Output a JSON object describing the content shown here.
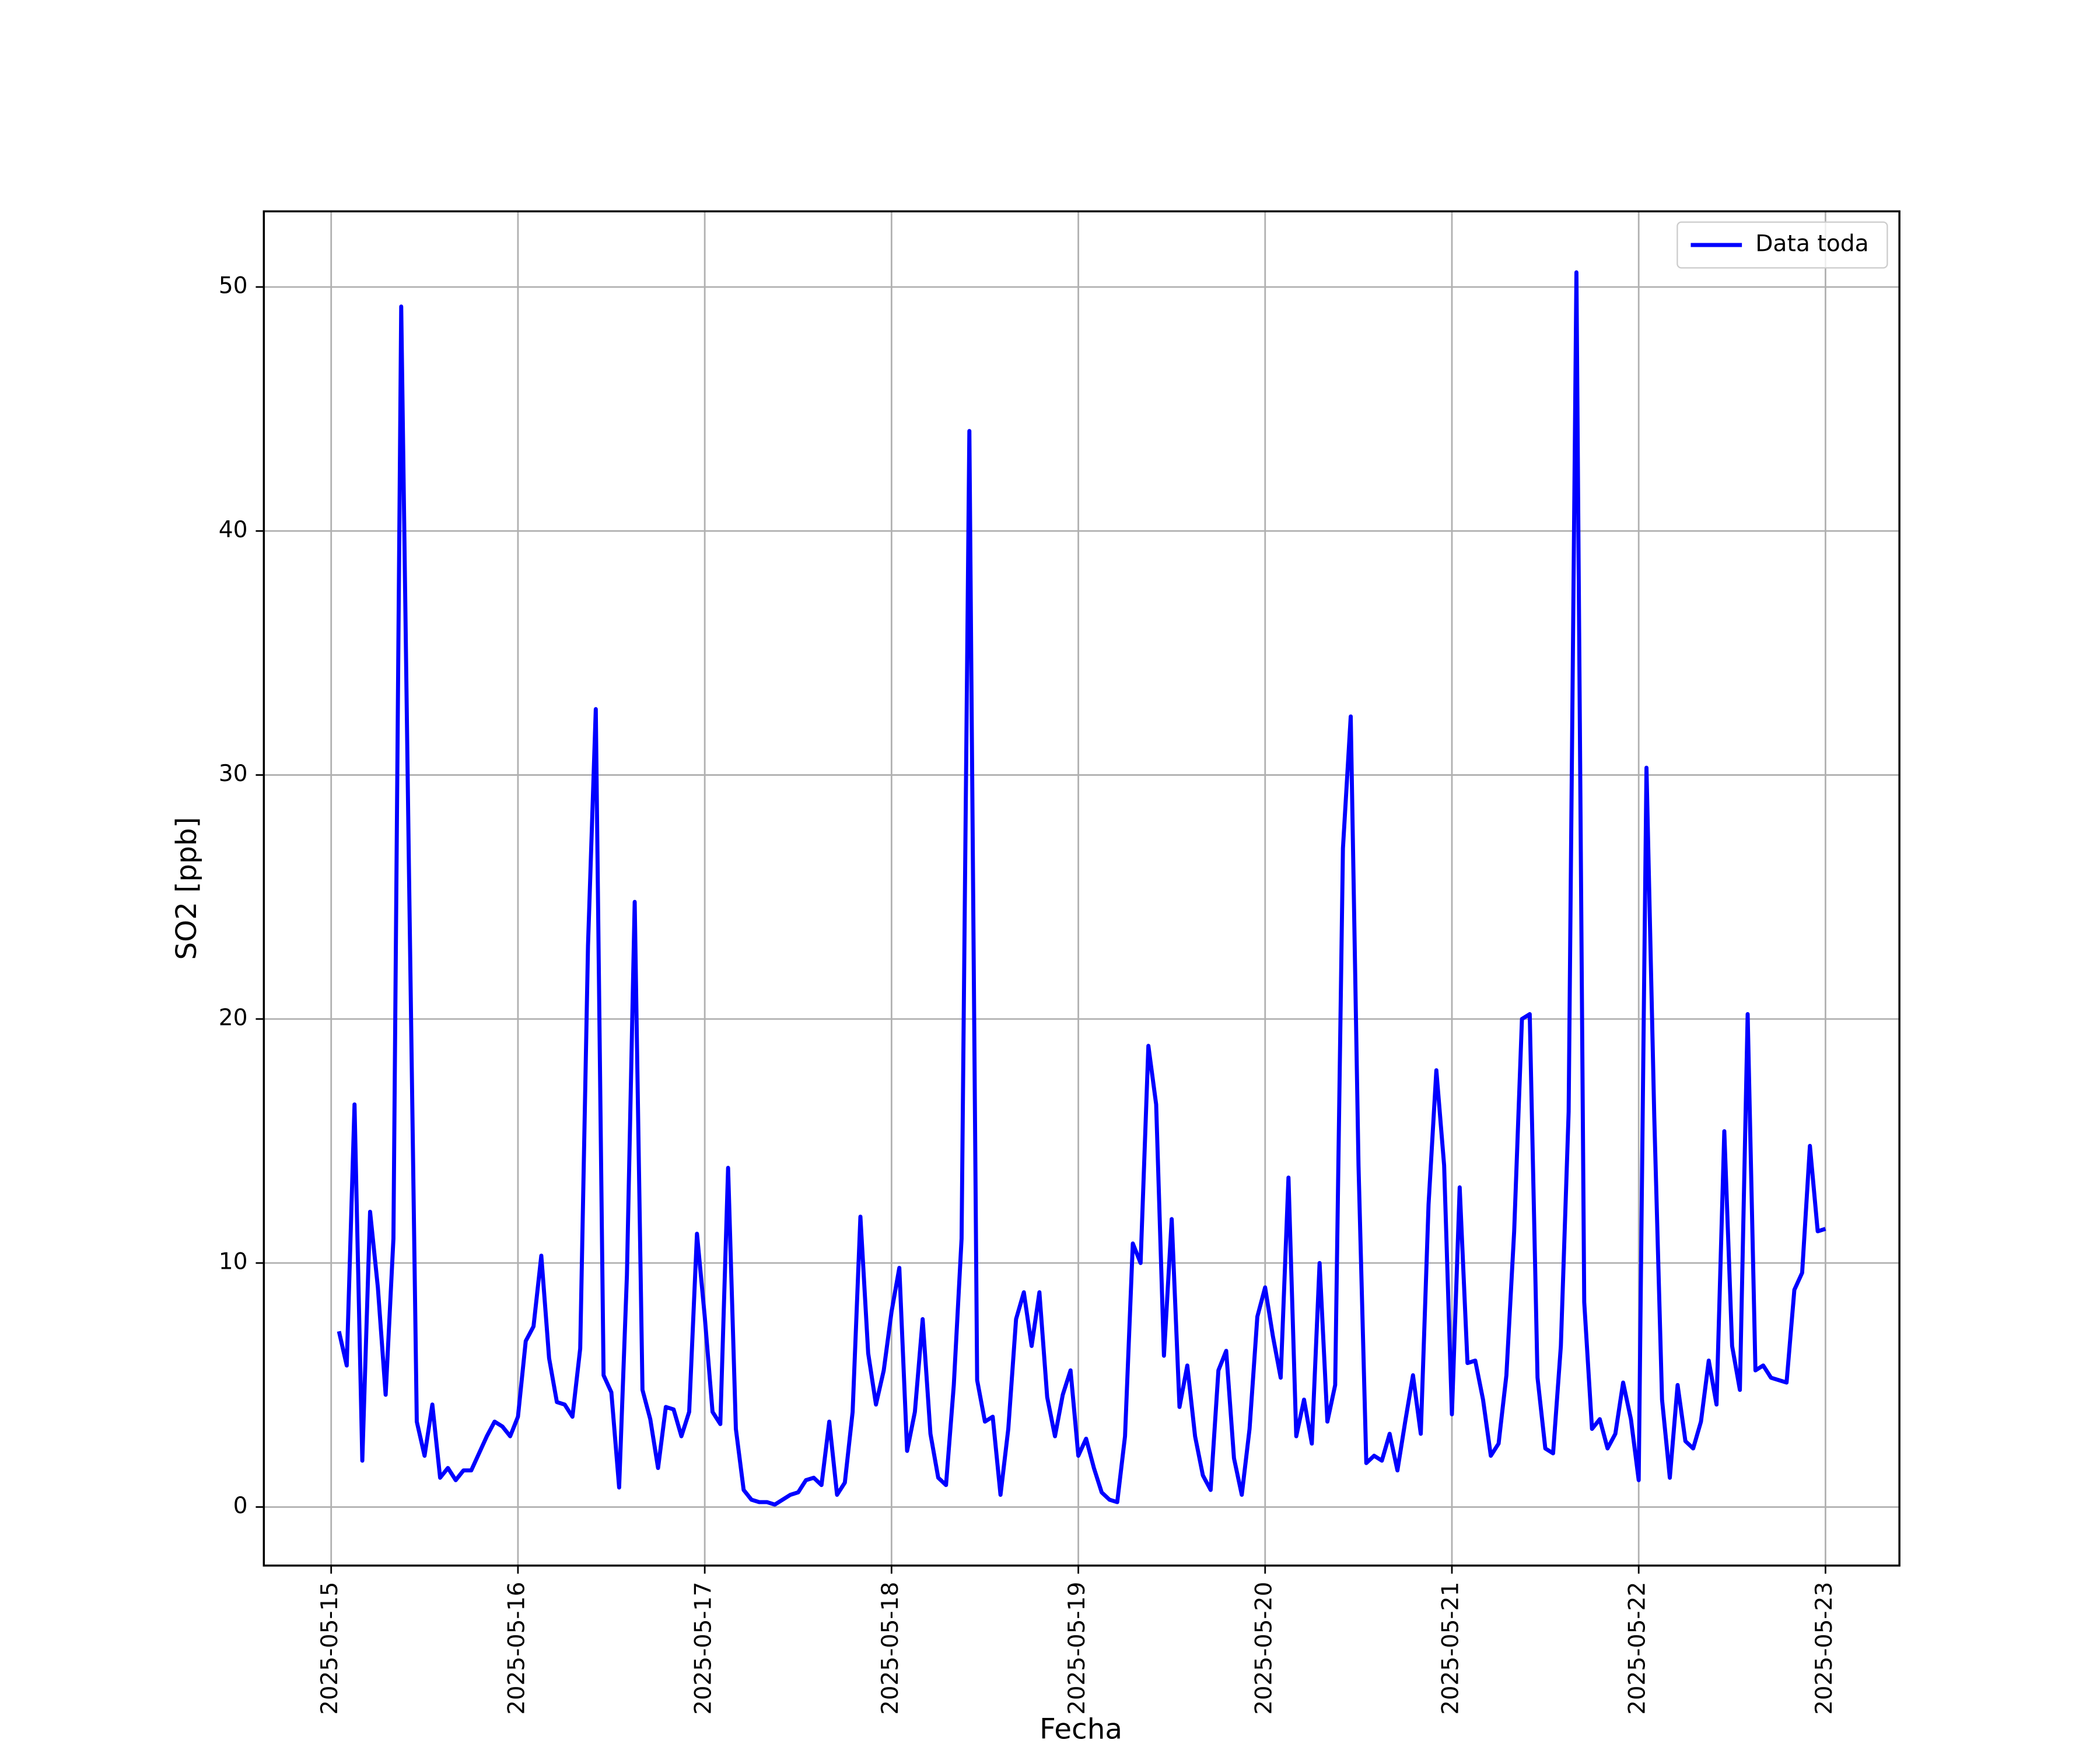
{
  "chart_data": {
    "type": "line",
    "x_label": "Fecha",
    "y_label": "SO2 [ppb]",
    "x": [
      "2025-05-15 01:00",
      "2025-05-15 02:00",
      "2025-05-15 03:00",
      "2025-05-15 04:00",
      "2025-05-15 05:00",
      "2025-05-15 06:00",
      "2025-05-15 07:00",
      "2025-05-15 08:00",
      "2025-05-15 09:00",
      "2025-05-15 10:00",
      "2025-05-15 11:00",
      "2025-05-15 12:00",
      "2025-05-15 13:00",
      "2025-05-15 14:00",
      "2025-05-15 15:00",
      "2025-05-15 16:00",
      "2025-05-15 17:00",
      "2025-05-15 18:00",
      "2025-05-15 19:00",
      "2025-05-15 20:00",
      "2025-05-15 21:00",
      "2025-05-15 22:00",
      "2025-05-15 23:00",
      "2025-05-16 00:00",
      "2025-05-16 01:00",
      "2025-05-16 02:00",
      "2025-05-16 03:00",
      "2025-05-16 04:00",
      "2025-05-16 05:00",
      "2025-05-16 06:00",
      "2025-05-16 07:00",
      "2025-05-16 08:00",
      "2025-05-16 09:00",
      "2025-05-16 10:00",
      "2025-05-16 11:00",
      "2025-05-16 12:00",
      "2025-05-16 13:00",
      "2025-05-16 14:00",
      "2025-05-16 15:00",
      "2025-05-16 16:00",
      "2025-05-16 17:00",
      "2025-05-16 18:00",
      "2025-05-16 19:00",
      "2025-05-16 20:00",
      "2025-05-16 21:00",
      "2025-05-16 22:00",
      "2025-05-16 23:00",
      "2025-05-17 00:00",
      "2025-05-17 01:00",
      "2025-05-17 02:00",
      "2025-05-17 03:00",
      "2025-05-17 04:00",
      "2025-05-17 05:00",
      "2025-05-17 06:00",
      "2025-05-17 07:00",
      "2025-05-17 08:00",
      "2025-05-17 09:00",
      "2025-05-17 10:00",
      "2025-05-17 11:00",
      "2025-05-17 12:00",
      "2025-05-17 13:00",
      "2025-05-17 14:00",
      "2025-05-17 15:00",
      "2025-05-17 16:00",
      "2025-05-17 17:00",
      "2025-05-17 18:00",
      "2025-05-17 19:00",
      "2025-05-17 20:00",
      "2025-05-17 21:00",
      "2025-05-17 22:00",
      "2025-05-17 23:00",
      "2025-05-18 00:00",
      "2025-05-18 01:00",
      "2025-05-18 02:00",
      "2025-05-18 03:00",
      "2025-05-18 04:00",
      "2025-05-18 05:00",
      "2025-05-18 06:00",
      "2025-05-18 07:00",
      "2025-05-18 08:00",
      "2025-05-18 09:00",
      "2025-05-18 10:00",
      "2025-05-18 11:00",
      "2025-05-18 12:00",
      "2025-05-18 13:00",
      "2025-05-18 14:00",
      "2025-05-18 15:00",
      "2025-05-18 16:00",
      "2025-05-18 17:00",
      "2025-05-18 18:00",
      "2025-05-18 19:00",
      "2025-05-18 20:00",
      "2025-05-18 21:00",
      "2025-05-18 22:00",
      "2025-05-18 23:00",
      "2025-05-19 00:00",
      "2025-05-19 01:00",
      "2025-05-19 02:00",
      "2025-05-19 03:00",
      "2025-05-19 04:00",
      "2025-05-19 05:00",
      "2025-05-19 06:00",
      "2025-05-19 07:00",
      "2025-05-19 08:00",
      "2025-05-19 09:00",
      "2025-05-19 10:00",
      "2025-05-19 11:00",
      "2025-05-19 12:00",
      "2025-05-19 13:00",
      "2025-05-19 14:00",
      "2025-05-19 15:00",
      "2025-05-19 16:00",
      "2025-05-19 17:00",
      "2025-05-19 18:00",
      "2025-05-19 19:00",
      "2025-05-19 20:00",
      "2025-05-19 21:00",
      "2025-05-19 22:00",
      "2025-05-19 23:00",
      "2025-05-20 00:00",
      "2025-05-20 01:00",
      "2025-05-20 02:00",
      "2025-05-20 03:00",
      "2025-05-20 04:00",
      "2025-05-20 05:00",
      "2025-05-20 06:00",
      "2025-05-20 07:00",
      "2025-05-20 08:00",
      "2025-05-20 09:00",
      "2025-05-20 10:00",
      "2025-05-20 11:00",
      "2025-05-20 12:00",
      "2025-05-20 13:00",
      "2025-05-20 14:00",
      "2025-05-20 15:00",
      "2025-05-20 16:00",
      "2025-05-20 17:00",
      "2025-05-20 18:00",
      "2025-05-20 19:00",
      "2025-05-20 20:00",
      "2025-05-20 21:00",
      "2025-05-20 22:00",
      "2025-05-20 23:00",
      "2025-05-21 00:00",
      "2025-05-21 01:00",
      "2025-05-21 02:00",
      "2025-05-21 03:00",
      "2025-05-21 04:00",
      "2025-05-21 05:00",
      "2025-05-21 06:00",
      "2025-05-21 07:00",
      "2025-05-21 08:00",
      "2025-05-21 09:00",
      "2025-05-21 10:00",
      "2025-05-21 11:00",
      "2025-05-21 12:00",
      "2025-05-21 13:00",
      "2025-05-21 14:00",
      "2025-05-21 15:00",
      "2025-05-21 16:00",
      "2025-05-21 17:00",
      "2025-05-21 18:00",
      "2025-05-21 19:00",
      "2025-05-21 20:00",
      "2025-05-21 21:00",
      "2025-05-21 22:00",
      "2025-05-21 23:00",
      "2025-05-22 00:00",
      "2025-05-22 01:00",
      "2025-05-22 02:00",
      "2025-05-22 03:00",
      "2025-05-22 04:00",
      "2025-05-22 05:00",
      "2025-05-22 06:00",
      "2025-05-22 07:00",
      "2025-05-22 08:00",
      "2025-05-22 09:00",
      "2025-05-22 10:00",
      "2025-05-22 11:00",
      "2025-05-22 12:00",
      "2025-05-22 13:00",
      "2025-05-22 14:00",
      "2025-05-22 15:00",
      "2025-05-22 16:00",
      "2025-05-22 17:00",
      "2025-05-22 18:00",
      "2025-05-22 19:00",
      "2025-05-22 20:00",
      "2025-05-22 21:00",
      "2025-05-22 22:00",
      "2025-05-22 23:00",
      "2025-05-23 00:00"
    ],
    "series": [
      {
        "name": "Data toda",
        "color": "#0000ff",
        "values": [
          7.2,
          5.8,
          16.5,
          1.9,
          12.1,
          9,
          4.6,
          11,
          49.2,
          26,
          3.5,
          2.1,
          4.2,
          1.2,
          1.6,
          1.1,
          1.5,
          1.5,
          2.2,
          2.9,
          3.5,
          3.3,
          2.9,
          3.7,
          6.8,
          7.4,
          10.3,
          6.1,
          4.3,
          4.2,
          3.7,
          6.5,
          23,
          32.7,
          5.4,
          4.7,
          0.8,
          9.5,
          24.8,
          4.8,
          3.6,
          1.6,
          4.1,
          4.0,
          2.9,
          3.9,
          11.2,
          7.8,
          3.9,
          3.4,
          13.9,
          3.2,
          0.7,
          0.3,
          0.2,
          0.2,
          0.1,
          0.3,
          0.5,
          0.6,
          1.1,
          1.2,
          0.9,
          3.5,
          0.5,
          1.0,
          3.9,
          11.9,
          6.3,
          4.2,
          5.6,
          8.0,
          9.8,
          2.3,
          3.9,
          7.7,
          3.0,
          1.2,
          0.9,
          5.0,
          11,
          44.1,
          5.2,
          3.5,
          3.7,
          0.5,
          3.2,
          7.7,
          8.8,
          6.6,
          8.8,
          4.5,
          2.9,
          4.6,
          5.6,
          2.1,
          2.8,
          1.6,
          0.6,
          0.3,
          0.2,
          2.9,
          10.8,
          10,
          18.9,
          16.5,
          6.2,
          11.8,
          4.1,
          5.8,
          2.9,
          1.3,
          0.7,
          5.6,
          6.4,
          2.0,
          0.5,
          3.2,
          7.8,
          9.0,
          7,
          5.3,
          13.5,
          2.9,
          4.4,
          2.6,
          10,
          3.5,
          5.0,
          27,
          32.4,
          14,
          1.8,
          2.1,
          1.9,
          3.0,
          1.5,
          3.5,
          5.4,
          3.0,
          12.4,
          17.9,
          14,
          3.8,
          13.1,
          5.9,
          6.0,
          4.4,
          2.1,
          2.6,
          5.4,
          11.3,
          20.0,
          20.2,
          5.3,
          2.4,
          2.2,
          6.6,
          16.2,
          50.6,
          8.4,
          3.2,
          3.6,
          2.4,
          3.0,
          5.1,
          3.6,
          1.1,
          30.3,
          16,
          4.4,
          1.2,
          5.0,
          2.7,
          2.4,
          3.5,
          6.0,
          4.2,
          15.4,
          6.6,
          4.8,
          20.2,
          5.6,
          5.8,
          5.3,
          5.2,
          5.1,
          8.9,
          9.6,
          14.8,
          11.3,
          11.4
        ]
      }
    ],
    "xlim": [
      "2025-05-14 15:21",
      "2025-05-23 09:30"
    ],
    "xticks": [
      "2025-05-15",
      "2025-05-16",
      "2025-05-17",
      "2025-05-18",
      "2025-05-19",
      "2025-05-20",
      "2025-05-21",
      "2025-05-22",
      "2025-05-23"
    ],
    "ylim": [
      -2.4,
      53.1
    ],
    "yticks": [
      0,
      10,
      20,
      30,
      40,
      50
    ],
    "grid": true,
    "legend": "upper right"
  }
}
